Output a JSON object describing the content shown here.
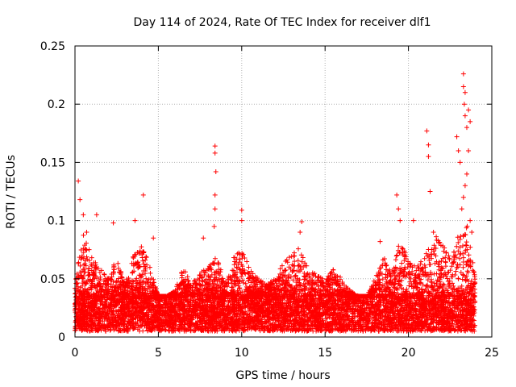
{
  "chart_data": {
    "type": "scatter",
    "title": "Day 114 of 2024, Rate Of TEC Index for receiver dlf1",
    "xlabel": "GPS time / hours",
    "ylabel": "ROTI / TECUs",
    "xlim": [
      0,
      25
    ],
    "ylim": [
      0,
      0.25
    ],
    "xticks": [
      0,
      5,
      10,
      15,
      20,
      25
    ],
    "xtick_labels": [
      "0",
      "5",
      "10",
      "15",
      "20",
      "25"
    ],
    "yticks": [
      0,
      0.05,
      0.1,
      0.15,
      0.2,
      0.25
    ],
    "ytick_labels": [
      "0",
      "0.05",
      "0.1",
      "0.15",
      "0.2",
      "0.25"
    ],
    "grid": true,
    "marker": "+",
    "color": "#ff0000",
    "data_range_hours": [
      0,
      24
    ],
    "baseline_band": [
      0.005,
      0.035
    ],
    "series": [
      {
        "name": "ROTI",
        "notable_points": [
          {
            "x": 0.2,
            "y": 0.134
          },
          {
            "x": 0.3,
            "y": 0.118
          },
          {
            "x": 0.5,
            "y": 0.105
          },
          {
            "x": 0.7,
            "y": 0.09
          },
          {
            "x": 1.3,
            "y": 0.105
          },
          {
            "x": 2.3,
            "y": 0.098
          },
          {
            "x": 3.6,
            "y": 0.1
          },
          {
            "x": 4.1,
            "y": 0.122
          },
          {
            "x": 4.7,
            "y": 0.085
          },
          {
            "x": 7.7,
            "y": 0.085
          },
          {
            "x": 8.4,
            "y": 0.164
          },
          {
            "x": 8.4,
            "y": 0.158
          },
          {
            "x": 8.45,
            "y": 0.142
          },
          {
            "x": 8.4,
            "y": 0.122
          },
          {
            "x": 8.4,
            "y": 0.11
          },
          {
            "x": 8.35,
            "y": 0.095
          },
          {
            "x": 10.0,
            "y": 0.109
          },
          {
            "x": 10.0,
            "y": 0.1
          },
          {
            "x": 13.6,
            "y": 0.099
          },
          {
            "x": 13.5,
            "y": 0.09
          },
          {
            "x": 18.3,
            "y": 0.082
          },
          {
            "x": 19.3,
            "y": 0.122
          },
          {
            "x": 19.4,
            "y": 0.11
          },
          {
            "x": 19.5,
            "y": 0.1
          },
          {
            "x": 20.3,
            "y": 0.1
          },
          {
            "x": 21.1,
            "y": 0.177
          },
          {
            "x": 21.2,
            "y": 0.165
          },
          {
            "x": 21.2,
            "y": 0.155
          },
          {
            "x": 21.3,
            "y": 0.125
          },
          {
            "x": 21.5,
            "y": 0.09
          },
          {
            "x": 22.9,
            "y": 0.172
          },
          {
            "x": 23.0,
            "y": 0.16
          },
          {
            "x": 23.1,
            "y": 0.15
          },
          {
            "x": 23.3,
            "y": 0.226
          },
          {
            "x": 23.3,
            "y": 0.215
          },
          {
            "x": 23.4,
            "y": 0.21
          },
          {
            "x": 23.35,
            "y": 0.2
          },
          {
            "x": 23.4,
            "y": 0.19
          },
          {
            "x": 23.5,
            "y": 0.18
          },
          {
            "x": 23.6,
            "y": 0.195
          },
          {
            "x": 23.7,
            "y": 0.185
          },
          {
            "x": 23.6,
            "y": 0.16
          },
          {
            "x": 23.5,
            "y": 0.14
          },
          {
            "x": 23.4,
            "y": 0.13
          },
          {
            "x": 23.3,
            "y": 0.12
          },
          {
            "x": 23.2,
            "y": 0.11
          },
          {
            "x": 23.7,
            "y": 0.1
          },
          {
            "x": 23.8,
            "y": 0.09
          }
        ],
        "activity_envelope": [
          {
            "x": 0,
            "y": 0.05
          },
          {
            "x": 0.5,
            "y": 0.09
          },
          {
            "x": 1,
            "y": 0.07
          },
          {
            "x": 1.5,
            "y": 0.06
          },
          {
            "x": 2,
            "y": 0.05
          },
          {
            "x": 2.5,
            "y": 0.07
          },
          {
            "x": 3,
            "y": 0.045
          },
          {
            "x": 3.5,
            "y": 0.07
          },
          {
            "x": 4,
            "y": 0.08
          },
          {
            "x": 4.5,
            "y": 0.06
          },
          {
            "x": 5,
            "y": 0.035
          },
          {
            "x": 5.5,
            "y": 0.035
          },
          {
            "x": 6,
            "y": 0.04
          },
          {
            "x": 6.5,
            "y": 0.06
          },
          {
            "x": 7,
            "y": 0.045
          },
          {
            "x": 7.5,
            "y": 0.055
          },
          {
            "x": 8,
            "y": 0.06
          },
          {
            "x": 8.5,
            "y": 0.07
          },
          {
            "x": 9,
            "y": 0.045
          },
          {
            "x": 9.5,
            "y": 0.07
          },
          {
            "x": 10,
            "y": 0.075
          },
          {
            "x": 10.5,
            "y": 0.06
          },
          {
            "x": 11,
            "y": 0.05
          },
          {
            "x": 11.5,
            "y": 0.045
          },
          {
            "x": 12,
            "y": 0.05
          },
          {
            "x": 12.5,
            "y": 0.065
          },
          {
            "x": 13,
            "y": 0.07
          },
          {
            "x": 13.5,
            "y": 0.08
          },
          {
            "x": 14,
            "y": 0.06
          },
          {
            "x": 14.5,
            "y": 0.055
          },
          {
            "x": 15,
            "y": 0.05
          },
          {
            "x": 15.5,
            "y": 0.06
          },
          {
            "x": 16,
            "y": 0.05
          },
          {
            "x": 16.5,
            "y": 0.04
          },
          {
            "x": 17,
            "y": 0.035
          },
          {
            "x": 17.5,
            "y": 0.035
          },
          {
            "x": 18,
            "y": 0.05
          },
          {
            "x": 18.5,
            "y": 0.07
          },
          {
            "x": 19,
            "y": 0.06
          },
          {
            "x": 19.5,
            "y": 0.085
          },
          {
            "x": 20,
            "y": 0.065
          },
          {
            "x": 20.5,
            "y": 0.06
          },
          {
            "x": 21,
            "y": 0.07
          },
          {
            "x": 21.5,
            "y": 0.09
          },
          {
            "x": 22,
            "y": 0.08
          },
          {
            "x": 22.5,
            "y": 0.07
          },
          {
            "x": 23,
            "y": 0.09
          },
          {
            "x": 23.5,
            "y": 0.1
          },
          {
            "x": 24,
            "y": 0.05
          }
        ]
      }
    ]
  }
}
